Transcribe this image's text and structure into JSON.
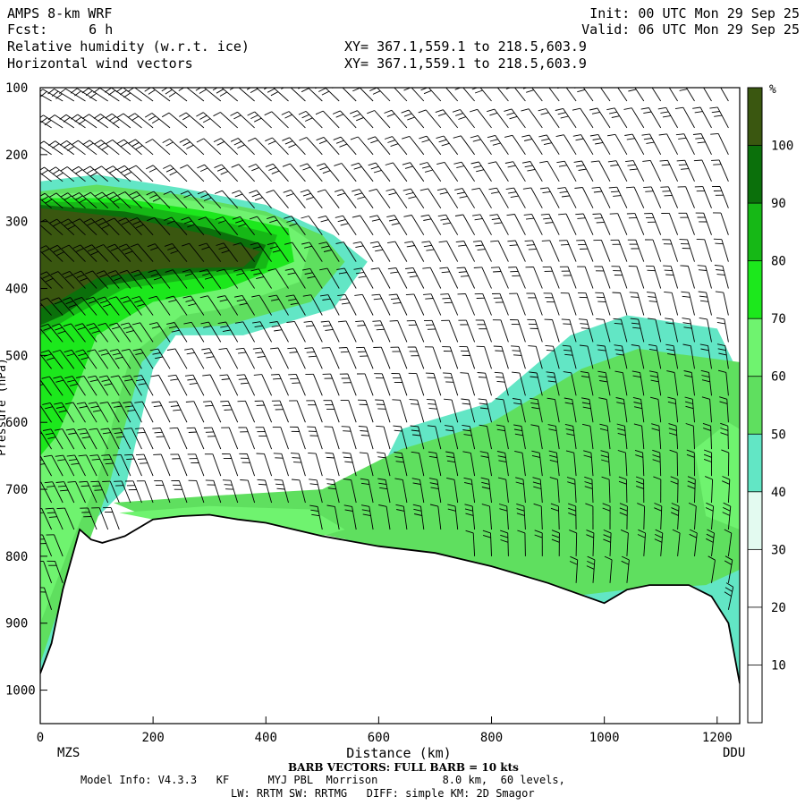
{
  "header": {
    "model": "AMPS 8-km WRF",
    "fcst_label": "Fcst:",
    "fcst_value": "6 h",
    "field1": "Relative humidity (w.r.t. ice)",
    "field2": "Horizontal wind vectors",
    "init": "Init: 00 UTC Mon 29 Sep 25",
    "valid": "Valid: 06 UTC Mon 29 Sep 25",
    "xy1": "XY= 367.1,559.1 to 218.5,603.9",
    "xy2": "XY= 367.1,559.1 to 218.5,603.9"
  },
  "footer": {
    "barb_note": "BARB VECTORS: FULL BARB = 10 kts",
    "model_info": "Model Info: V4.3.3   KF      MYJ PBL  Morrison          8.0 km,  60 levels,",
    "model_info2": "LW: RRTM SW: RRTMG   DIFF: simple KM: 2D Smagor",
    "left_station": "MZS",
    "right_station": "DDU"
  },
  "colors": {
    "rh_30_40": "#e3faf0",
    "rh_40_50": "#62e6c5",
    "rh_50_60": "#5fdf5f",
    "rh_60_70": "#6ff36f",
    "rh_70_80": "#1ce81c",
    "rh_80_90": "#16b816",
    "rh_90_100": "#0b700b",
    "rh_100": "#3a5710"
  },
  "chart_data": {
    "type": "heatmap",
    "title": "Relative humidity (w.r.t. ice)",
    "xlabel": "Distance (km)",
    "ylabel": "Pressure (hPa)",
    "xlim": [
      0,
      1240
    ],
    "ylim": [
      1050,
      100
    ],
    "x_ticks": [
      0,
      200,
      400,
      600,
      800,
      1000,
      1200
    ],
    "y_ticks": [
      100,
      200,
      300,
      400,
      500,
      600,
      700,
      800,
      900,
      1000
    ],
    "colorbar": {
      "unit": "%",
      "levels": [
        10,
        20,
        30,
        40,
        50,
        60,
        70,
        80,
        90,
        100
      ]
    },
    "terrain_surface_hpa": [
      [
        0,
        975
      ],
      [
        20,
        930
      ],
      [
        40,
        850
      ],
      [
        70,
        760
      ],
      [
        90,
        775
      ],
      [
        110,
        780
      ],
      [
        150,
        770
      ],
      [
        200,
        745
      ],
      [
        250,
        740
      ],
      [
        300,
        738
      ],
      [
        350,
        745
      ],
      [
        400,
        750
      ],
      [
        450,
        760
      ],
      [
        500,
        770
      ],
      [
        600,
        785
      ],
      [
        700,
        795
      ],
      [
        800,
        815
      ],
      [
        900,
        840
      ],
      [
        960,
        858
      ],
      [
        1000,
        870
      ],
      [
        1040,
        850
      ],
      [
        1080,
        843
      ],
      [
        1150,
        843
      ],
      [
        1190,
        860
      ],
      [
        1220,
        900
      ],
      [
        1240,
        990
      ]
    ],
    "rh_regions": [
      {
        "level": "rh_40_50",
        "points": [
          [
            0,
            240
          ],
          [
            100,
            230
          ],
          [
            250,
            250
          ],
          [
            400,
            275
          ],
          [
            520,
            320
          ],
          [
            580,
            360
          ],
          [
            520,
            430
          ],
          [
            360,
            470
          ],
          [
            240,
            470
          ],
          [
            200,
            520
          ],
          [
            150,
            700
          ],
          [
            80,
            760
          ],
          [
            40,
            900
          ],
          [
            0,
            975
          ]
        ]
      },
      {
        "level": "rh_40_50",
        "points": [
          [
            540,
            780
          ],
          [
            640,
            610
          ],
          [
            800,
            570
          ],
          [
            940,
            470
          ],
          [
            1040,
            440
          ],
          [
            1200,
            460
          ],
          [
            1240,
            530
          ],
          [
            1240,
            990
          ],
          [
            1220,
            900
          ],
          [
            1190,
            860
          ],
          [
            1150,
            843
          ],
          [
            1080,
            843
          ],
          [
            1040,
            850
          ],
          [
            1000,
            870
          ],
          [
            960,
            858
          ],
          [
            900,
            840
          ],
          [
            800,
            815
          ],
          [
            700,
            795
          ],
          [
            600,
            785
          ]
        ]
      },
      {
        "level": "rh_50_60",
        "points": [
          [
            0,
            255
          ],
          [
            100,
            245
          ],
          [
            250,
            260
          ],
          [
            400,
            285
          ],
          [
            500,
            320
          ],
          [
            540,
            360
          ],
          [
            480,
            420
          ],
          [
            330,
            455
          ],
          [
            240,
            460
          ],
          [
            180,
            510
          ],
          [
            120,
            700
          ],
          [
            90,
            770
          ],
          [
            40,
            860
          ],
          [
            0,
            960
          ]
        ]
      },
      {
        "level": "rh_50_60",
        "points": [
          [
            130,
            720
          ],
          [
            300,
            710
          ],
          [
            500,
            700
          ],
          [
            640,
            640
          ],
          [
            800,
            600
          ],
          [
            960,
            520
          ],
          [
            1060,
            490
          ],
          [
            1240,
            510
          ],
          [
            1240,
            820
          ],
          [
            1180,
            843
          ],
          [
            1040,
            850
          ],
          [
            960,
            858
          ],
          [
            800,
            815
          ],
          [
            600,
            785
          ],
          [
            400,
            750
          ],
          [
            200,
            745
          ]
        ]
      },
      {
        "level": "rh_60_70",
        "points": [
          [
            0,
            260
          ],
          [
            120,
            255
          ],
          [
            280,
            270
          ],
          [
            420,
            295
          ],
          [
            480,
            330
          ],
          [
            460,
            390
          ],
          [
            330,
            430
          ],
          [
            250,
            440
          ],
          [
            160,
            500
          ],
          [
            100,
            690
          ],
          [
            60,
            770
          ],
          [
            0,
            900
          ]
        ]
      },
      {
        "level": "rh_60_70",
        "points": [
          [
            140,
            735
          ],
          [
            300,
            725
          ],
          [
            480,
            730
          ],
          [
            540,
            760
          ],
          [
            500,
            770
          ],
          [
            300,
            738
          ],
          [
            200,
            745
          ]
        ]
      },
      {
        "level": "rh_60_70",
        "points": [
          [
            1160,
            640
          ],
          [
            1220,
            600
          ],
          [
            1240,
            610
          ],
          [
            1240,
            760
          ],
          [
            1180,
            740
          ]
        ]
      },
      {
        "level": "rh_70_80",
        "points": [
          [
            0,
            265
          ],
          [
            140,
            265
          ],
          [
            300,
            285
          ],
          [
            440,
            310
          ],
          [
            450,
            360
          ],
          [
            330,
            400
          ],
          [
            200,
            420
          ],
          [
            100,
            470
          ],
          [
            60,
            560
          ],
          [
            30,
            620
          ],
          [
            0,
            650
          ]
        ]
      },
      {
        "level": "rh_80_90",
        "points": [
          [
            0,
            270
          ],
          [
            140,
            272
          ],
          [
            300,
            295
          ],
          [
            420,
            320
          ],
          [
            400,
            370
          ],
          [
            280,
            385
          ],
          [
            150,
            400
          ],
          [
            60,
            440
          ],
          [
            0,
            470
          ]
        ]
      },
      {
        "level": "rh_90_100",
        "points": [
          [
            0,
            275
          ],
          [
            150,
            285
          ],
          [
            300,
            310
          ],
          [
            400,
            335
          ],
          [
            380,
            370
          ],
          [
            240,
            378
          ],
          [
            120,
            395
          ],
          [
            40,
            440
          ],
          [
            0,
            455
          ]
        ]
      },
      {
        "level": "rh_100",
        "points": [
          [
            0,
            280
          ],
          [
            160,
            295
          ],
          [
            300,
            320
          ],
          [
            390,
            345
          ],
          [
            360,
            368
          ],
          [
            220,
            370
          ],
          [
            100,
            385
          ],
          [
            30,
            420
          ],
          [
            0,
            430
          ]
        ]
      }
    ],
    "wind_barbs": {
      "columns_km": [
        20,
        40,
        60,
        80,
        100,
        120,
        140,
        160,
        180,
        200,
        230,
        260,
        290,
        320,
        350,
        380,
        410,
        440,
        470,
        500,
        530,
        560,
        590,
        620,
        650,
        680,
        710,
        740,
        770,
        800,
        830,
        860,
        890,
        920,
        950,
        980,
        1010,
        1040,
        1070,
        1100,
        1130,
        1160,
        1190,
        1220
      ],
      "levels_hpa": [
        120,
        160,
        200,
        240,
        280,
        320,
        360,
        400,
        440,
        480,
        520,
        560,
        600,
        640,
        680,
        720,
        760,
        800,
        840,
        880
      ],
      "full_barb_kts": 10
    }
  }
}
